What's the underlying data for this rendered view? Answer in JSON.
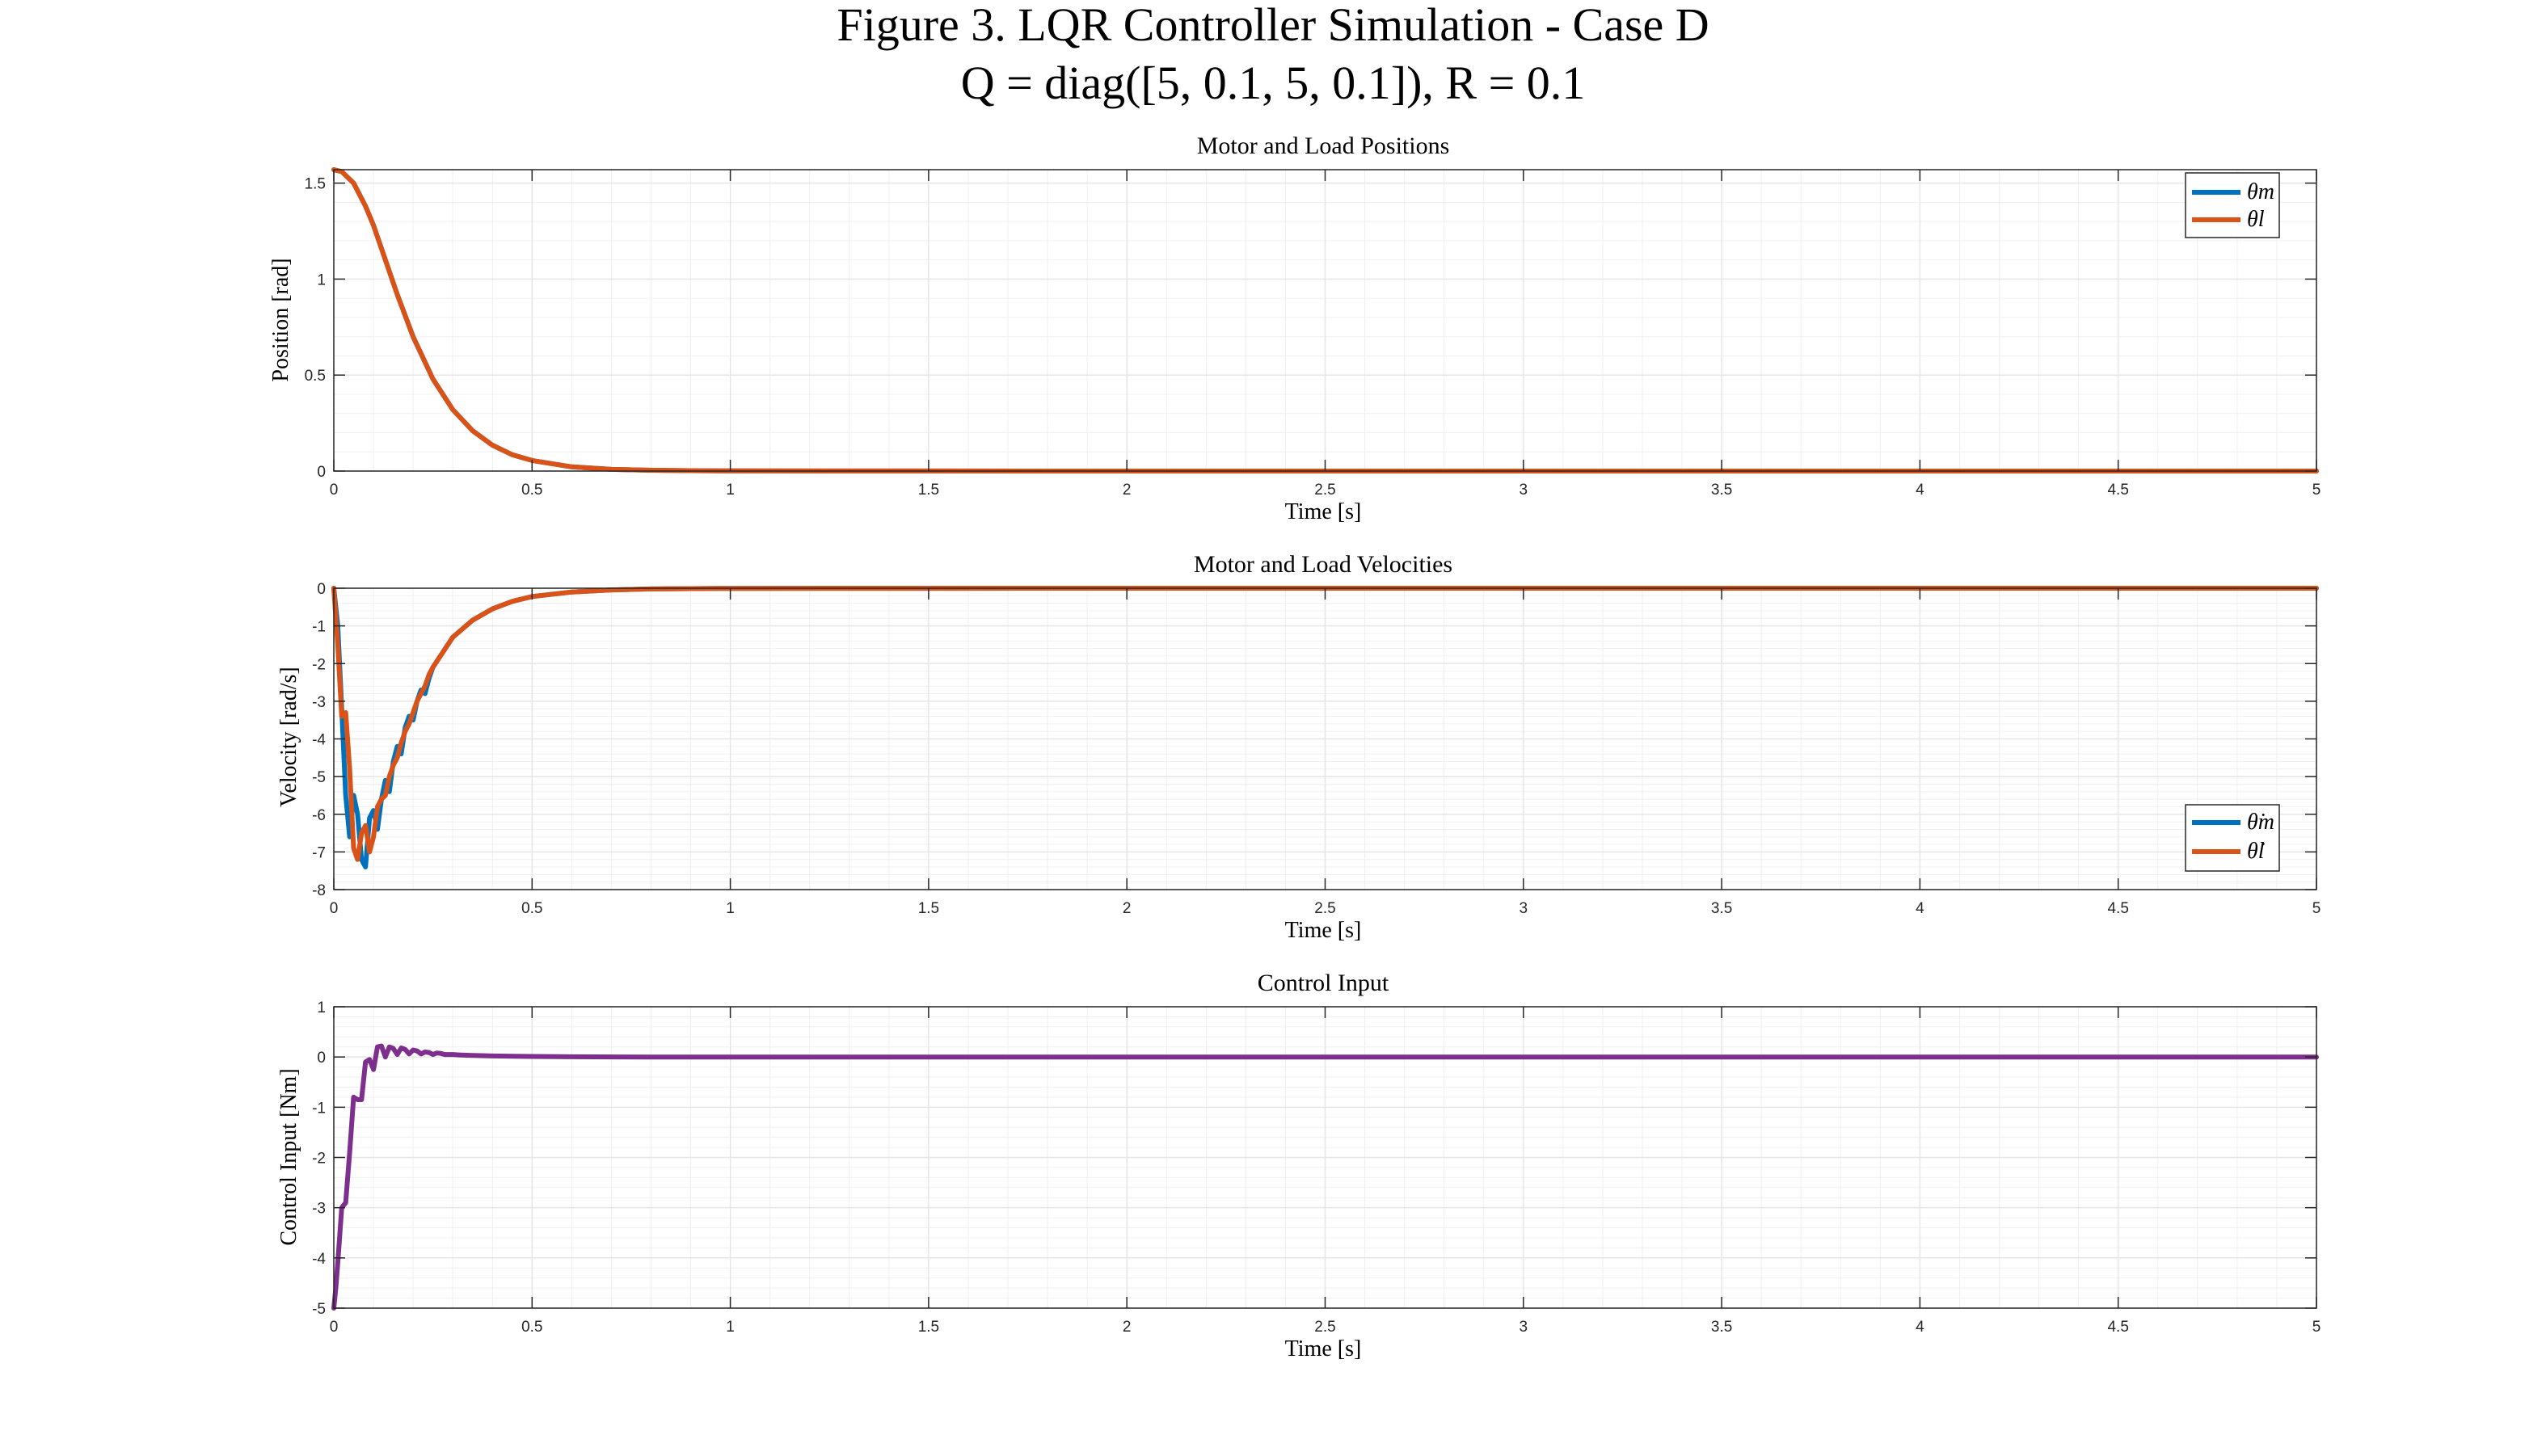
{
  "figure": {
    "title_line1": "Figure 3. LQR Controller Simulation - Case D",
    "title_line2": "Q = diag([5, 0.1, 5, 0.1]), R = 0.1"
  },
  "colors": {
    "blue": "#0072BD",
    "orange": "#D95319",
    "purple": "#7E2F8E",
    "grid": "#e6e6e6",
    "axis": "#262626"
  },
  "chart_data": [
    {
      "type": "line",
      "title": "Motor and Load Positions",
      "xlabel": "Time [s]",
      "ylabel": "Position [rad]",
      "xlim": [
        0,
        5
      ],
      "ylim": [
        0,
        1.57
      ],
      "xticks": [
        0,
        0.5,
        1,
        1.5,
        2,
        2.5,
        3,
        3.5,
        4,
        4.5,
        5
      ],
      "yticks": [
        0,
        0.5,
        1,
        1.5
      ],
      "grid": true,
      "legend": "top-right",
      "series": [
        {
          "name": "θm",
          "color": "#0072BD",
          "x": [
            0,
            0.02,
            0.05,
            0.08,
            0.1,
            0.13,
            0.16,
            0.2,
            0.25,
            0.3,
            0.35,
            0.4,
            0.45,
            0.5,
            0.6,
            0.7,
            0.8,
            0.9,
            1.0,
            2.0,
            3.0,
            4.0,
            5.0
          ],
          "y": [
            1.57,
            1.56,
            1.5,
            1.38,
            1.28,
            1.1,
            0.92,
            0.7,
            0.48,
            0.32,
            0.21,
            0.135,
            0.085,
            0.055,
            0.022,
            0.009,
            0.004,
            0.002,
            0.001,
            0,
            0,
            0,
            0
          ]
        },
        {
          "name": "θl",
          "color": "#D95319",
          "x": [
            0,
            0.02,
            0.05,
            0.08,
            0.1,
            0.13,
            0.16,
            0.2,
            0.25,
            0.3,
            0.35,
            0.4,
            0.45,
            0.5,
            0.6,
            0.7,
            0.8,
            0.9,
            1.0,
            2.0,
            3.0,
            4.0,
            5.0
          ],
          "y": [
            1.57,
            1.56,
            1.5,
            1.38,
            1.28,
            1.1,
            0.92,
            0.7,
            0.48,
            0.32,
            0.21,
            0.135,
            0.085,
            0.055,
            0.022,
            0.009,
            0.004,
            0.002,
            0.001,
            0,
            0,
            0,
            0
          ]
        }
      ]
    },
    {
      "type": "line",
      "title": "Motor and Load Velocities",
      "xlabel": "Time [s]",
      "ylabel": "Velocity [rad/s]",
      "xlim": [
        0,
        5
      ],
      "ylim": [
        -8,
        0
      ],
      "xticks": [
        0,
        0.5,
        1,
        1.5,
        2,
        2.5,
        3,
        3.5,
        4,
        4.5,
        5
      ],
      "yticks": [
        -8,
        -7,
        -6,
        -5,
        -4,
        -3,
        -2,
        -1,
        0
      ],
      "grid": true,
      "legend": "bottom-right",
      "series": [
        {
          "name": "θ̇m",
          "color": "#0072BD",
          "x": [
            0,
            0.01,
            0.02,
            0.03,
            0.04,
            0.05,
            0.06,
            0.07,
            0.08,
            0.09,
            0.1,
            0.11,
            0.12,
            0.13,
            0.14,
            0.15,
            0.16,
            0.17,
            0.18,
            0.19,
            0.2,
            0.21,
            0.22,
            0.23,
            0.24,
            0.25,
            0.3,
            0.35,
            0.4,
            0.45,
            0.5,
            0.6,
            0.7,
            0.8,
            0.9,
            1.0,
            2.0,
            3.0,
            4.0,
            5.0
          ],
          "y": [
            0,
            -1.0,
            -3.2,
            -5.5,
            -6.6,
            -5.5,
            -6.0,
            -7.2,
            -7.4,
            -6.1,
            -5.9,
            -6.4,
            -5.6,
            -5.1,
            -5.4,
            -4.6,
            -4.2,
            -4.4,
            -3.7,
            -3.4,
            -3.5,
            -3.0,
            -2.7,
            -2.8,
            -2.4,
            -2.1,
            -1.3,
            -0.85,
            -0.55,
            -0.35,
            -0.22,
            -0.1,
            -0.045,
            -0.02,
            -0.01,
            -0.005,
            0,
            0,
            0,
            0
          ]
        },
        {
          "name": "θ̇l",
          "color": "#D95319",
          "x": [
            0,
            0.01,
            0.02,
            0.03,
            0.04,
            0.05,
            0.06,
            0.07,
            0.08,
            0.09,
            0.1,
            0.11,
            0.12,
            0.13,
            0.14,
            0.15,
            0.16,
            0.17,
            0.18,
            0.19,
            0.2,
            0.21,
            0.22,
            0.23,
            0.24,
            0.25,
            0.3,
            0.35,
            0.4,
            0.45,
            0.5,
            0.6,
            0.7,
            0.8,
            0.9,
            1.0,
            2.0,
            3.0,
            4.0,
            5.0
          ],
          "y": [
            0,
            -1.5,
            -3.4,
            -3.3,
            -4.8,
            -6.9,
            -7.2,
            -6.5,
            -6.3,
            -7.0,
            -6.6,
            -5.8,
            -5.6,
            -5.5,
            -5.0,
            -4.7,
            -4.5,
            -4.1,
            -3.8,
            -3.6,
            -3.3,
            -3.0,
            -2.8,
            -2.6,
            -2.3,
            -2.1,
            -1.3,
            -0.85,
            -0.55,
            -0.35,
            -0.22,
            -0.1,
            -0.045,
            -0.02,
            -0.01,
            -0.005,
            0,
            0,
            0,
            0
          ]
        }
      ]
    },
    {
      "type": "line",
      "title": "Control Input",
      "xlabel": "Time [s]",
      "ylabel": "Control Input [Nm]",
      "xlim": [
        0,
        5
      ],
      "ylim": [
        -5,
        1
      ],
      "xticks": [
        0,
        0.5,
        1,
        1.5,
        2,
        2.5,
        3,
        3.5,
        4,
        4.5,
        5
      ],
      "yticks": [
        -5,
        -4,
        -3,
        -2,
        -1,
        0,
        1
      ],
      "grid": true,
      "legend": "none",
      "series": [
        {
          "color": "#7E2F8E",
          "x": [
            0,
            0.005,
            0.01,
            0.02,
            0.03,
            0.04,
            0.05,
            0.06,
            0.07,
            0.08,
            0.09,
            0.1,
            0.11,
            0.12,
            0.13,
            0.14,
            0.15,
            0.16,
            0.17,
            0.18,
            0.19,
            0.2,
            0.21,
            0.22,
            0.23,
            0.24,
            0.25,
            0.26,
            0.27,
            0.28,
            0.3,
            0.32,
            0.35,
            0.4,
            0.5,
            0.6,
            0.8,
            1.0,
            2.0,
            3.0,
            4.0,
            5.0
          ],
          "y": [
            -5,
            -4.6,
            -4.1,
            -3.0,
            -2.9,
            -1.9,
            -0.8,
            -0.85,
            -0.85,
            -0.1,
            -0.05,
            -0.25,
            0.2,
            0.22,
            0.0,
            0.2,
            0.17,
            0.05,
            0.18,
            0.15,
            0.06,
            0.14,
            0.12,
            0.06,
            0.1,
            0.09,
            0.05,
            0.08,
            0.07,
            0.05,
            0.05,
            0.04,
            0.03,
            0.02,
            0.01,
            0.005,
            0,
            0,
            0,
            0,
            0,
            0
          ]
        }
      ]
    }
  ]
}
